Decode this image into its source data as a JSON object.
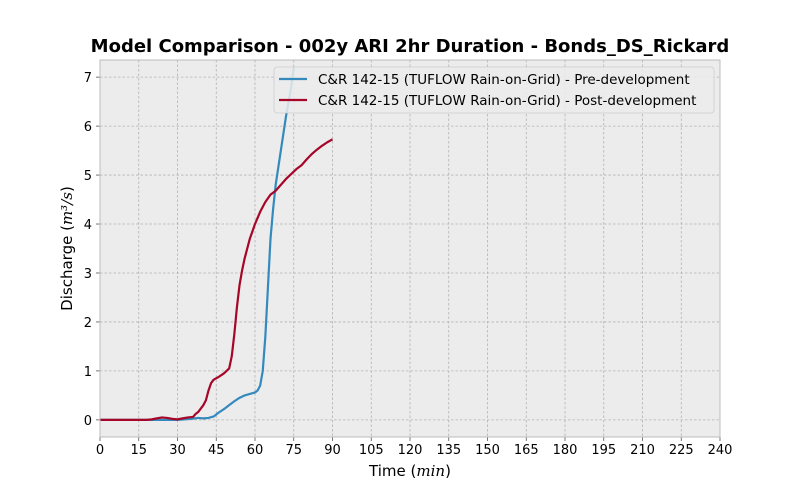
{
  "chart_data": {
    "type": "line",
    "title": "Model Comparison - 002y ARI 2hr Duration - Bonds_DS_Rickard",
    "xlabel": "Time",
    "xlabel_unit": "min",
    "ylabel": "Discharge",
    "ylabel_unit": "m³/s",
    "xlim": [
      0,
      240
    ],
    "ylim": [
      -0.35,
      7.35
    ],
    "xticks": [
      0,
      15,
      30,
      45,
      60,
      75,
      90,
      105,
      120,
      135,
      150,
      165,
      180,
      195,
      210,
      225,
      240
    ],
    "yticks": [
      0,
      1,
      2,
      3,
      4,
      5,
      6,
      7
    ],
    "grid": true,
    "legend_position": "top-right",
    "background": "#ececec",
    "series": [
      {
        "name": "C&R 142-15 (TUFLOW Rain-on-Grid) - Pre-development",
        "color": "#348abd",
        "x": [
          0,
          15,
          20,
          25,
          30,
          35,
          38,
          40,
          42,
          44,
          46,
          48,
          50,
          52,
          54,
          56,
          58,
          60,
          61,
          62,
          63,
          64,
          65,
          66,
          67,
          68,
          70,
          72,
          74,
          75
        ],
        "y": [
          0,
          0,
          0,
          0,
          0,
          0.02,
          0.04,
          0.03,
          0.04,
          0.07,
          0.15,
          0.22,
          0.3,
          0.38,
          0.45,
          0.5,
          0.53,
          0.56,
          0.6,
          0.7,
          1.0,
          1.7,
          2.7,
          3.7,
          4.3,
          4.8,
          5.5,
          6.2,
          6.8,
          7.2
        ]
      },
      {
        "name": "C&R 142-15 (TUFLOW Rain-on-Grid) - Post-development",
        "color": "#a60628",
        "x": [
          0,
          15,
          18,
          20,
          22,
          24,
          26,
          28,
          30,
          32,
          34,
          36,
          37,
          38,
          40,
          41,
          42,
          43,
          44,
          46,
          48,
          50,
          51,
          52,
          53,
          54,
          55,
          56,
          57,
          58,
          60,
          62,
          64,
          66,
          68,
          70,
          72,
          74,
          76,
          78,
          80,
          82,
          84,
          86,
          88,
          90
        ],
        "y": [
          0,
          0,
          0,
          0.01,
          0.03,
          0.05,
          0.04,
          0.02,
          0.01,
          0.03,
          0.05,
          0.06,
          0.12,
          0.16,
          0.3,
          0.4,
          0.6,
          0.75,
          0.82,
          0.88,
          0.95,
          1.05,
          1.3,
          1.75,
          2.3,
          2.75,
          3.05,
          3.3,
          3.5,
          3.7,
          4.0,
          4.25,
          4.45,
          4.6,
          4.68,
          4.8,
          4.92,
          5.02,
          5.12,
          5.2,
          5.32,
          5.43,
          5.52,
          5.6,
          5.67,
          5.73
        ]
      }
    ]
  }
}
